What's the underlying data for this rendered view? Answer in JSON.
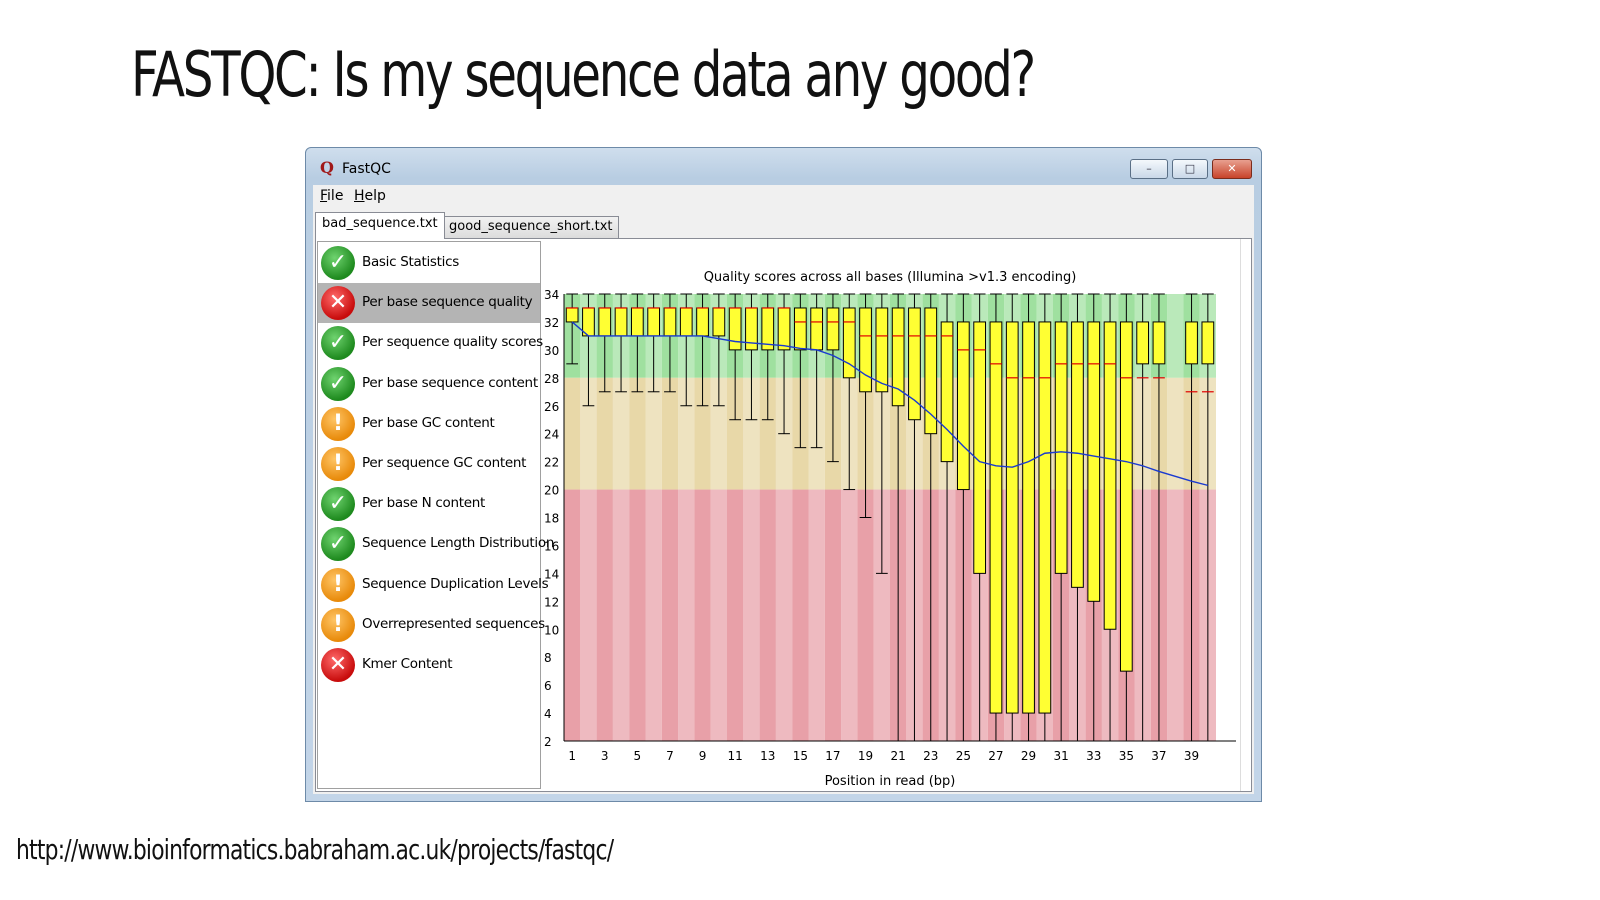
{
  "slide": {
    "title": "FASTQC: Is my sequence data any good?",
    "url": "http://www.bioinformatics.babraham.ac.uk/projects/fastqc/"
  },
  "window": {
    "title": "FastQC",
    "buttons": {
      "minimize": "–",
      "maximize": "□",
      "close": "✕"
    }
  },
  "menu": {
    "file": {
      "mnemonic": "F",
      "rest": "ile"
    },
    "help": {
      "mnemonic": "H",
      "rest": "elp"
    }
  },
  "tabs": [
    {
      "label": "bad_sequence.txt",
      "active": true
    },
    {
      "label": "good_sequence_short.txt",
      "active": false
    }
  ],
  "modules": [
    {
      "label": "Basic Statistics",
      "status": "pass",
      "icon": "check-icon"
    },
    {
      "label": "Per base sequence quality",
      "status": "fail",
      "icon": "cross-icon",
      "selected": true
    },
    {
      "label": "Per sequence quality scores",
      "status": "pass",
      "icon": "check-icon"
    },
    {
      "label": "Per base sequence content",
      "status": "pass",
      "icon": "check-icon"
    },
    {
      "label": "Per base GC content",
      "status": "warn",
      "icon": "exclamation-icon"
    },
    {
      "label": "Per sequence GC content",
      "status": "warn",
      "icon": "exclamation-icon"
    },
    {
      "label": "Per base N content",
      "status": "pass",
      "icon": "check-icon"
    },
    {
      "label": "Sequence Length Distribution",
      "status": "pass",
      "icon": "check-icon"
    },
    {
      "label": "Sequence Duplication Levels",
      "status": "warn",
      "icon": "exclamation-icon"
    },
    {
      "label": "Overrepresented sequences",
      "status": "warn",
      "icon": "exclamation-icon"
    },
    {
      "label": "Kmer Content",
      "status": "fail",
      "icon": "cross-icon"
    }
  ],
  "colors": {
    "pass": "#2a9a2a",
    "fail": "#d81818",
    "warn": "#f0900c",
    "zone_good": "#9fe09f",
    "zone_ok": "#e8d8a8",
    "zone_bad": "#e8a0a8",
    "box_fill": "#ffff33",
    "median": "#e00000",
    "mean_line": "#1a3ad0"
  },
  "chart_data": {
    "type": "box",
    "title": "Quality scores across all bases (Illumina >v1.3 encoding)",
    "xlabel": "Position in read (bp)",
    "ylabel": "",
    "xlim": [
      1,
      40
    ],
    "ylim": [
      2,
      34
    ],
    "x_ticks": [
      "1",
      "3",
      "5",
      "7",
      "9",
      "11",
      "13",
      "15",
      "17",
      "19",
      "21",
      "23",
      "25",
      "27",
      "29",
      "31",
      "33",
      "35",
      "37",
      "39"
    ],
    "y_ticks": [
      "2",
      "4",
      "6",
      "8",
      "10",
      "12",
      "14",
      "16",
      "18",
      "20",
      "22",
      "24",
      "26",
      "28",
      "30",
      "32",
      "34"
    ],
    "zones": {
      "good": [
        28,
        34
      ],
      "ok": [
        20,
        28
      ],
      "bad": [
        2,
        20
      ]
    },
    "positions": [
      1,
      2,
      3,
      4,
      5,
      6,
      7,
      8,
      9,
      10,
      11,
      12,
      13,
      14,
      15,
      16,
      17,
      18,
      19,
      20,
      21,
      22,
      23,
      24,
      25,
      26,
      27,
      28,
      29,
      30,
      31,
      32,
      33,
      34,
      35,
      36,
      37,
      39,
      40
    ],
    "q1": [
      32,
      31,
      31,
      31,
      31,
      31,
      31,
      31,
      31,
      31,
      30,
      30,
      30,
      30,
      30,
      30,
      30,
      28,
      27,
      27,
      26,
      25,
      24,
      22,
      20,
      14,
      4,
      4,
      4,
      4,
      14,
      13,
      12,
      10,
      7,
      29,
      29,
      29,
      29
    ],
    "q3": [
      33,
      33,
      33,
      33,
      33,
      33,
      33,
      33,
      33,
      33,
      33,
      33,
      33,
      33,
      33,
      33,
      33,
      33,
      33,
      33,
      33,
      33,
      33,
      32,
      32,
      32,
      32,
      32,
      32,
      32,
      32,
      32,
      32,
      32,
      32,
      32,
      32,
      32,
      32
    ],
    "median": [
      33,
      33,
      33,
      33,
      33,
      33,
      33,
      33,
      33,
      33,
      33,
      33,
      33,
      33,
      32,
      32,
      32,
      32,
      31,
      31,
      31,
      31,
      31,
      31,
      30,
      30,
      29,
      28,
      28,
      28,
      29,
      29,
      29,
      29,
      28,
      28,
      28,
      27,
      27
    ],
    "lower_whisker": [
      29,
      26,
      27,
      27,
      27,
      27,
      27,
      26,
      26,
      26,
      25,
      25,
      25,
      24,
      23,
      23,
      22,
      20,
      18,
      14,
      2,
      2,
      2,
      2,
      2,
      2,
      2,
      2,
      2,
      2,
      2,
      2,
      2,
      2,
      2,
      2,
      2,
      2,
      2
    ],
    "upper_whisker": [
      34,
      34,
      34,
      34,
      34,
      34,
      34,
      34,
      34,
      34,
      34,
      34,
      34,
      34,
      34,
      34,
      34,
      34,
      34,
      34,
      34,
      34,
      34,
      34,
      34,
      34,
      34,
      34,
      34,
      34,
      34,
      34,
      34,
      34,
      34,
      34,
      34,
      34,
      34
    ],
    "mean": [
      32,
      31,
      31,
      31,
      31,
      31,
      31,
      31,
      31,
      30.8,
      30.6,
      30.5,
      30.4,
      30.3,
      30.1,
      30.0,
      29.6,
      29.0,
      28.2,
      27.6,
      27.2,
      26.4,
      25.4,
      24.3,
      23.1,
      22.0,
      21.7,
      21.6,
      22.0,
      22.6,
      22.7,
      22.6,
      22.4,
      22.2,
      22.0,
      21.7,
      21.3,
      20.6,
      20.3
    ]
  }
}
